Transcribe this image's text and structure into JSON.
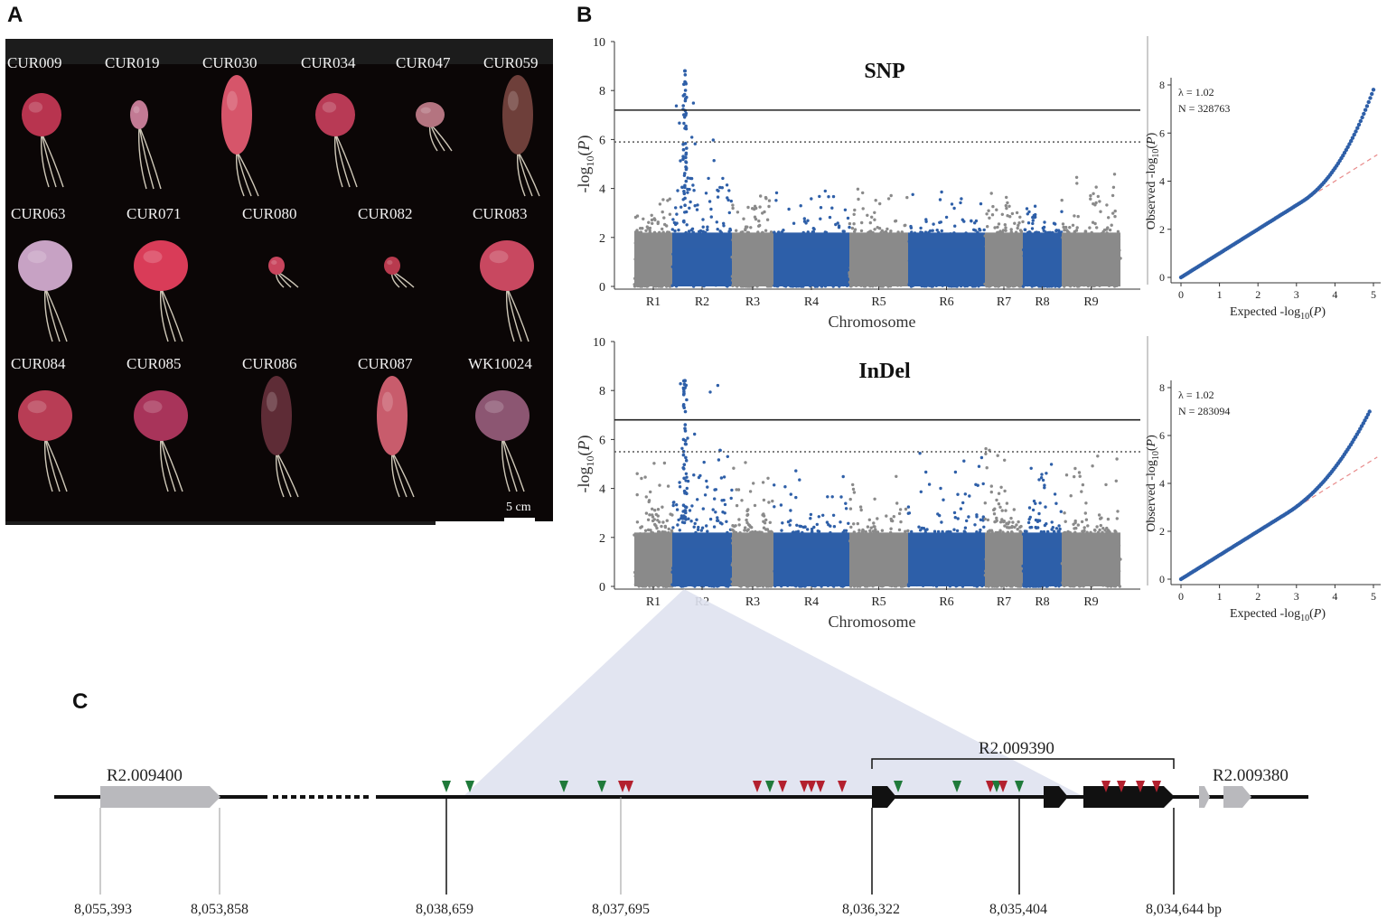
{
  "panel_labels": {
    "a": "A",
    "b": "B",
    "c": "C"
  },
  "panel_a": {
    "rows": [
      [
        {
          "name": "CUR009",
          "color": "#b8344f",
          "shape": "round"
        },
        {
          "name": "CUR019",
          "color": "#c27a94",
          "shape": "long"
        },
        {
          "name": "CUR030",
          "color": "#d6556a",
          "shape": "carrot"
        },
        {
          "name": "CUR034",
          "color": "#b83a55",
          "shape": "round"
        },
        {
          "name": "CUR047",
          "color": "#b47480",
          "shape": "small"
        },
        {
          "name": "CUR059",
          "color": "#6e3f3a",
          "shape": "carrot"
        }
      ],
      [
        {
          "name": "CUR063",
          "color": "#c7a2c4",
          "shape": "round"
        },
        {
          "name": "CUR071",
          "color": "#d93c58",
          "shape": "round"
        },
        {
          "name": "CUR080",
          "color": "#c8455d",
          "shape": "tiny"
        },
        {
          "name": "CUR082",
          "color": "#b83a4e",
          "shape": "tiny"
        },
        {
          "name": "CUR083",
          "color": "#c84860",
          "shape": "round"
        }
      ],
      [
        {
          "name": "CUR084",
          "color": "#b83d55",
          "shape": "round"
        },
        {
          "name": "CUR085",
          "color": "#a8345a",
          "shape": "round"
        },
        {
          "name": "CUR086",
          "color": "#5e2c36",
          "shape": "carrot"
        },
        {
          "name": "CUR087",
          "color": "#c85c6c",
          "shape": "carrot"
        },
        {
          "name": "WK10024",
          "color": "#8c5672",
          "shape": "round"
        }
      ]
    ],
    "scale_bar": "5 cm"
  },
  "panel_b": {
    "chart_data": [
      {
        "type": "scatter",
        "kind": "manhattan",
        "title": "SNP",
        "ylabel": "-log10(P)",
        "xlabel": "Chromosome",
        "ylim": [
          0,
          10
        ],
        "yticks": [
          0,
          2,
          4,
          6,
          8,
          10
        ],
        "chromosomes": [
          "R1",
          "R2",
          "R3",
          "R4",
          "R5",
          "R6",
          "R7",
          "R8",
          "R9"
        ],
        "significance_threshold": 7.2,
        "suggestive_threshold": 5.9,
        "peak": {
          "chromosome": "R2",
          "value": 8.8
        },
        "chrom_max": [
          3.6,
          8.8,
          3.7,
          3.9,
          4.1,
          4.0,
          3.9,
          3.4,
          4.6
        ],
        "colors": {
          "odd": "#8a8a8a",
          "even": "#2e5fa8",
          "threshold": "#222222"
        }
      },
      {
        "type": "scatter",
        "kind": "qq",
        "xlabel": "Expected -log10(P)",
        "ylabel": "Observed -log10(P)",
        "lambda": "λ = 1.02",
        "n": "N = 328763",
        "xlim": [
          0,
          5
        ],
        "ylim": [
          0,
          8
        ],
        "xticks": [
          0,
          1,
          2,
          3,
          4,
          5
        ],
        "yticks": [
          0,
          2,
          4,
          6,
          8
        ],
        "max_expected": 5.0,
        "max_observed": 7.8
      },
      {
        "type": "scatter",
        "kind": "manhattan",
        "title": "InDel",
        "ylabel": "-log10(P)",
        "xlabel": "Chromosome",
        "ylim": [
          0,
          10
        ],
        "yticks": [
          0,
          2,
          4,
          6,
          8,
          10
        ],
        "chromosomes": [
          "R1",
          "R2",
          "R3",
          "R4",
          "R5",
          "R6",
          "R7",
          "R8",
          "R9"
        ],
        "significance_threshold": 6.8,
        "suggestive_threshold": 5.5,
        "peak": {
          "chromosome": "R2",
          "value": 8.4
        },
        "chrom_max": [
          5.1,
          8.4,
          5.2,
          4.8,
          4.5,
          5.5,
          5.8,
          5.0,
          5.6
        ],
        "colors": {
          "odd": "#8a8a8a",
          "even": "#2e5fa8",
          "threshold": "#222222"
        }
      },
      {
        "type": "scatter",
        "kind": "qq",
        "xlabel": "Expected -log10(P)",
        "ylabel": "Observed -log10(P)",
        "lambda": "λ = 1.02",
        "n": "N = 283094",
        "xlim": [
          0,
          5
        ],
        "ylim": [
          0,
          8
        ],
        "xticks": [
          0,
          1,
          2,
          3,
          4,
          5
        ],
        "yticks": [
          0,
          2,
          4,
          6,
          8
        ],
        "max_expected": 4.9,
        "max_observed": 7.0
      }
    ]
  },
  "panel_c": {
    "genes": {
      "left": "R2.009400",
      "middle": "R2.009390",
      "right": "R2.009380"
    },
    "positions": [
      "8,055,393",
      "8,053,858",
      "8,038,659",
      "8,037,695",
      "8,036,322",
      "8,035,404",
      "8,034,644 bp"
    ],
    "variant_colors": {
      "snp": "#b3202e",
      "indel": "#1f7a3a"
    }
  }
}
